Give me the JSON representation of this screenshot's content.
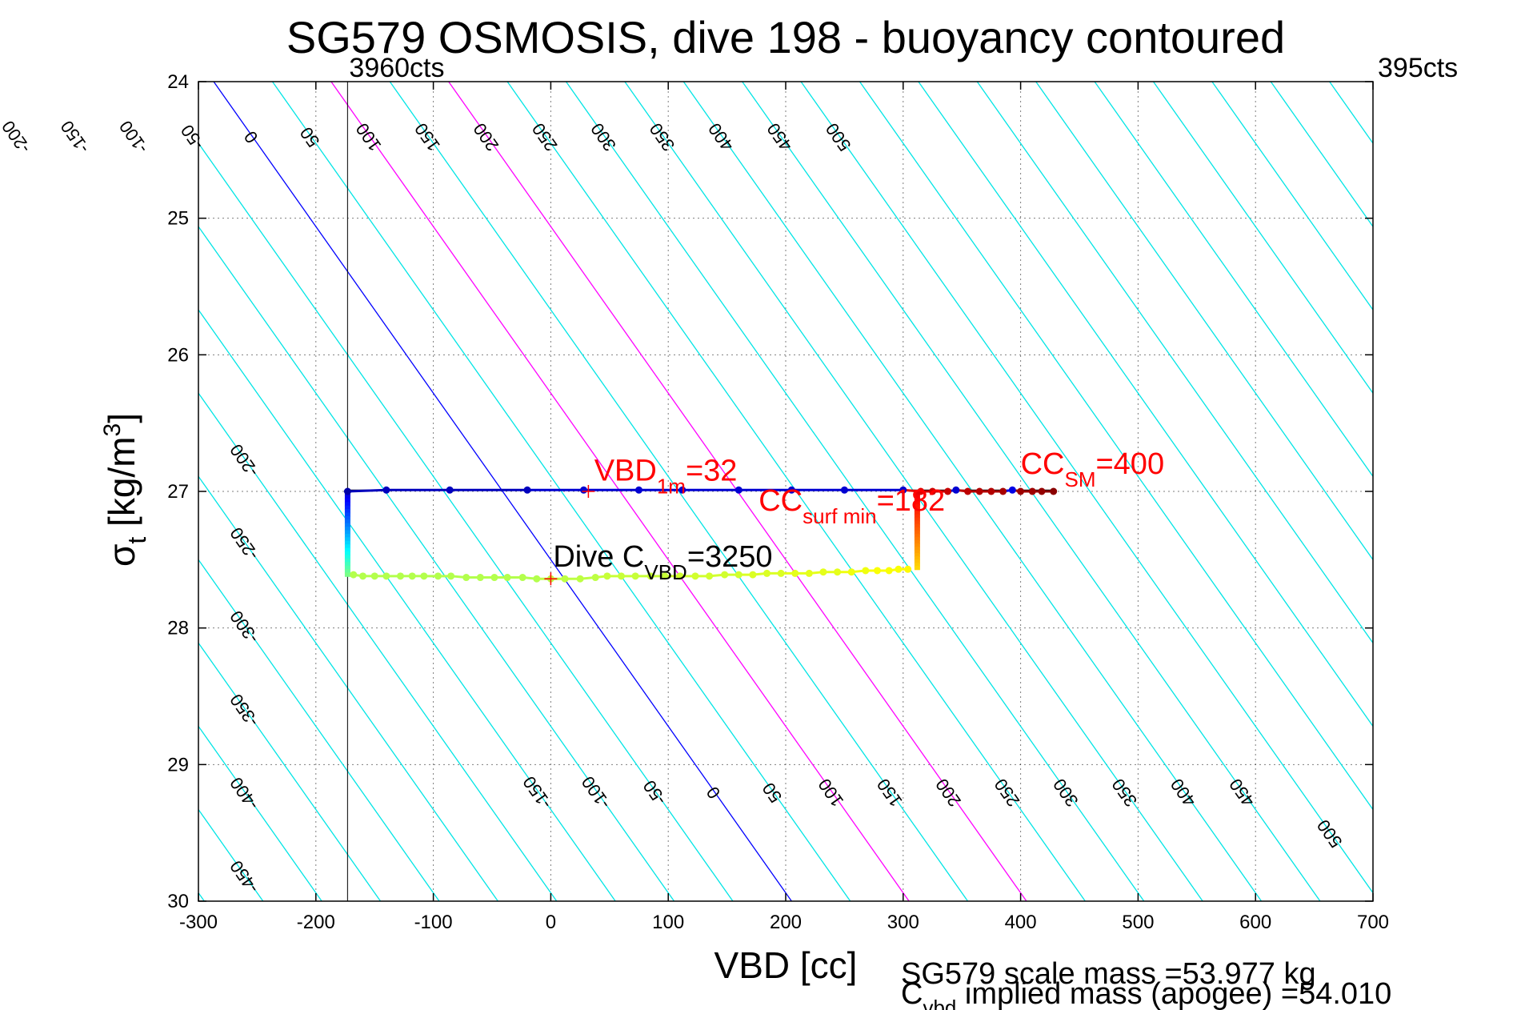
{
  "chart_data": {
    "type": "scatter",
    "title": "SG579 OSMOSIS, dive 198 - buoyancy contoured",
    "xlabel": "VBD [cc]",
    "ylabel": {
      "main": "σ",
      "sub": "t",
      "unit": " [kg/m",
      "sup": "3",
      "close": "]"
    },
    "xlim": [
      -300,
      700
    ],
    "ylim": [
      24,
      30
    ],
    "y_reversed": true,
    "grid": true,
    "xticks": [
      -300,
      -200,
      -100,
      0,
      100,
      200,
      300,
      400,
      500,
      600,
      700
    ],
    "yticks": [
      24,
      25,
      26,
      27,
      28,
      29,
      30
    ],
    "vbd_limits": [
      {
        "x": -173,
        "label": "3960cts"
      },
      {
        "x": 700,
        "label": "395cts"
      }
    ],
    "contours": {
      "slope_cc_per_sigma": 82,
      "spacing_cc": 50,
      "range": [
        -650,
        950
      ],
      "colors": {
        "default": "#00e5e5",
        "zero": "#0000ff",
        "magenta": "#ff00ff"
      },
      "magenta_levels": [
        100,
        200
      ],
      "top_label_levels": [
        -200,
        -150,
        -100,
        -50,
        0,
        50,
        100,
        150,
        200,
        250,
        300,
        350,
        400,
        450,
        500
      ],
      "bottom_label_levels": [
        -150,
        -100,
        -50,
        0,
        50,
        100,
        150,
        200,
        250,
        300,
        350,
        400,
        450,
        500
      ],
      "left_label_levels": [
        -450,
        -400,
        -350,
        -300,
        -250,
        -200
      ],
      "left_label_x": -260
    },
    "series": [
      {
        "segment": "surface-top",
        "color_scale": "jet",
        "points": [
          {
            "x": -173,
            "y": 27.0,
            "c": 0.04
          },
          {
            "x": -140,
            "y": 26.99,
            "c": 0.06
          },
          {
            "x": -86,
            "y": 26.99,
            "c": 0.06
          },
          {
            "x": -20,
            "y": 26.99,
            "c": 0.06
          },
          {
            "x": 28,
            "y": 26.99,
            "c": 0.08
          },
          {
            "x": 75,
            "y": 26.99,
            "c": 0.08
          },
          {
            "x": 112,
            "y": 26.99,
            "c": 0.08
          },
          {
            "x": 160,
            "y": 26.99,
            "c": 0.08
          },
          {
            "x": 205,
            "y": 26.99,
            "c": 0.08
          },
          {
            "x": 250,
            "y": 26.99,
            "c": 0.08
          },
          {
            "x": 300,
            "y": 26.99,
            "c": 0.08
          },
          {
            "x": 315,
            "y": 27.0,
            "c": 0.9
          },
          {
            "x": 325,
            "y": 27.0,
            "c": 0.92
          },
          {
            "x": 338,
            "y": 27.0,
            "c": 0.93
          },
          {
            "x": 345,
            "y": 26.99,
            "c": 0.08
          },
          {
            "x": 355,
            "y": 27.0,
            "c": 0.94
          },
          {
            "x": 365,
            "y": 27.0,
            "c": 0.95
          },
          {
            "x": 375,
            "y": 27.0,
            "c": 0.95
          },
          {
            "x": 385,
            "y": 27.0,
            "c": 0.96
          },
          {
            "x": 393,
            "y": 26.99,
            "c": 0.1
          },
          {
            "x": 400,
            "y": 27.0,
            "c": 0.97
          },
          {
            "x": 410,
            "y": 27.0,
            "c": 0.97
          },
          {
            "x": 418,
            "y": 27.0,
            "c": 0.98
          },
          {
            "x": 428,
            "y": 27.0,
            "c": 0.99
          }
        ]
      },
      {
        "segment": "deep-bottom",
        "color_scale": "jet",
        "points": [
          {
            "x": -168,
            "y": 27.61,
            "c": 0.55
          },
          {
            "x": -160,
            "y": 27.62,
            "c": 0.55
          },
          {
            "x": -150,
            "y": 27.62,
            "c": 0.55
          },
          {
            "x": -140,
            "y": 27.62,
            "c": 0.55
          },
          {
            "x": -128,
            "y": 27.62,
            "c": 0.55
          },
          {
            "x": -118,
            "y": 27.62,
            "c": 0.55
          },
          {
            "x": -108,
            "y": 27.62,
            "c": 0.55
          },
          {
            "x": -96,
            "y": 27.62,
            "c": 0.55
          },
          {
            "x": -85,
            "y": 27.62,
            "c": 0.55
          },
          {
            "x": -72,
            "y": 27.63,
            "c": 0.55
          },
          {
            "x": -60,
            "y": 27.63,
            "c": 0.55
          },
          {
            "x": -48,
            "y": 27.63,
            "c": 0.55
          },
          {
            "x": -37,
            "y": 27.63,
            "c": 0.55
          },
          {
            "x": -24,
            "y": 27.63,
            "c": 0.55
          },
          {
            "x": -12,
            "y": 27.64,
            "c": 0.55
          },
          {
            "x": 0,
            "y": 27.64,
            "c": 0.56
          },
          {
            "x": 12,
            "y": 27.64,
            "c": 0.56
          },
          {
            "x": 25,
            "y": 27.64,
            "c": 0.56
          },
          {
            "x": 38,
            "y": 27.63,
            "c": 0.56
          },
          {
            "x": 48,
            "y": 27.62,
            "c": 0.57
          },
          {
            "x": 60,
            "y": 27.62,
            "c": 0.57
          },
          {
            "x": 72,
            "y": 27.62,
            "c": 0.57
          },
          {
            "x": 85,
            "y": 27.62,
            "c": 0.57
          },
          {
            "x": 97,
            "y": 27.62,
            "c": 0.57
          },
          {
            "x": 110,
            "y": 27.62,
            "c": 0.58
          },
          {
            "x": 123,
            "y": 27.62,
            "c": 0.58
          },
          {
            "x": 135,
            "y": 27.62,
            "c": 0.58
          },
          {
            "x": 148,
            "y": 27.61,
            "c": 0.58
          },
          {
            "x": 160,
            "y": 27.61,
            "c": 0.58
          },
          {
            "x": 172,
            "y": 27.61,
            "c": 0.59
          },
          {
            "x": 184,
            "y": 27.6,
            "c": 0.59
          },
          {
            "x": 196,
            "y": 27.6,
            "c": 0.59
          },
          {
            "x": 208,
            "y": 27.6,
            "c": 0.6
          },
          {
            "x": 220,
            "y": 27.6,
            "c": 0.6
          },
          {
            "x": 232,
            "y": 27.59,
            "c": 0.6
          },
          {
            "x": 244,
            "y": 27.59,
            "c": 0.6
          },
          {
            "x": 256,
            "y": 27.59,
            "c": 0.61
          },
          {
            "x": 268,
            "y": 27.58,
            "c": 0.61
          },
          {
            "x": 278,
            "y": 27.58,
            "c": 0.62
          },
          {
            "x": 288,
            "y": 27.58,
            "c": 0.62
          },
          {
            "x": 296,
            "y": 27.57,
            "c": 0.62
          },
          {
            "x": 304,
            "y": 27.57,
            "c": 0.63
          }
        ]
      }
    ],
    "profile_bars": [
      {
        "x": -173,
        "y_from": 27.0,
        "y_to": 27.62,
        "c_from": 0.08,
        "c_to": 0.5
      },
      {
        "x": 312,
        "y_from": 27.0,
        "y_to": 27.57,
        "c_from": 0.9,
        "c_to": 0.66
      }
    ],
    "reference_line": {
      "y": 26.99,
      "x_from": -173,
      "x_to": 430
    },
    "markers": [
      {
        "x": 32,
        "y": 27.0,
        "color": "#ff0000"
      },
      {
        "x": 0,
        "y": 27.64,
        "color": "#ff0000"
      }
    ],
    "annotations": [
      {
        "name": "vbd-1m-annotation",
        "x": 37,
        "y": 26.92,
        "color": "#ff0000",
        "base": "VBD",
        "sub": "1m",
        "rest": "=32"
      },
      {
        "name": "cc-surf-min-annotation",
        "x": 177,
        "y": 27.14,
        "color": "#ff0000",
        "base": "CC",
        "sub": "surf min",
        "rest": "=182"
      },
      {
        "name": "cc-sm-annotation",
        "x": 400,
        "y": 26.87,
        "color": "#ff0000",
        "base": "CC",
        "sub": "SM",
        "rest": "=400"
      },
      {
        "name": "dive-cvbd-annotation",
        "x": 2,
        "y": 27.55,
        "color": "#000000",
        "base": "Dive C",
        "sub": "VBD",
        "rest": "=3250"
      }
    ],
    "footer": {
      "line1": "SG579 scale mass =53.977 kg",
      "line2_base": "C",
      "line2_sub": "vbd",
      "line2_rest": " implied mass (apogee) =54.010"
    }
  }
}
